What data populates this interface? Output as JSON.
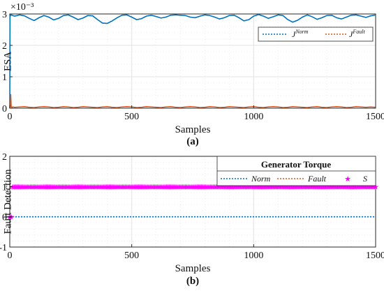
{
  "chart_data": [
    {
      "panel": "a",
      "type": "line",
      "caption": "(a)",
      "xlabel": "Samples",
      "ylabel": "ESA",
      "y_exponent_label": "×10⁻³",
      "xlim": [
        0,
        1500
      ],
      "ylim": [
        0,
        3
      ],
      "xticks": [
        "0",
        "500",
        "1000",
        "1500"
      ],
      "yticks": [
        "0",
        "1",
        "2",
        "3"
      ],
      "grid": true,
      "legend_position": "upper-right",
      "series": [
        {
          "name": "J",
          "superscript": "Norm",
          "color": "#0072BD",
          "style": "dotted",
          "x": [
            0,
            1,
            2,
            3,
            5,
            8,
            12,
            20,
            40,
            60,
            80,
            100,
            120,
            140,
            160,
            180,
            200,
            220,
            240,
            260,
            280,
            300,
            320,
            340,
            360,
            380,
            400,
            420,
            440,
            460,
            480,
            500,
            520,
            540,
            560,
            580,
            600,
            620,
            640,
            660,
            680,
            700,
            720,
            740,
            760,
            780,
            800,
            820,
            840,
            860,
            880,
            900,
            920,
            940,
            960,
            980,
            1000,
            1020,
            1040,
            1060,
            1080,
            1100,
            1120,
            1140,
            1160,
            1180,
            1200,
            1220,
            1240,
            1260,
            1280,
            1300,
            1320,
            1340,
            1360,
            1380,
            1400,
            1420,
            1440,
            1460,
            1480,
            1500
          ],
          "y": [
            0,
            2.9,
            2.95,
            2.97,
            2.96,
            2.97,
            2.95,
            2.93,
            2.97,
            2.94,
            2.86,
            2.79,
            2.88,
            2.95,
            2.9,
            2.81,
            2.86,
            2.95,
            2.97,
            2.9,
            2.82,
            2.87,
            2.95,
            2.94,
            2.82,
            2.71,
            2.7,
            2.78,
            2.88,
            2.96,
            2.97,
            2.9,
            2.82,
            2.85,
            2.93,
            2.96,
            2.92,
            2.87,
            2.9,
            2.96,
            2.97,
            2.96,
            2.95,
            2.9,
            2.88,
            2.93,
            2.97,
            2.95,
            2.9,
            2.84,
            2.88,
            2.95,
            2.96,
            2.88,
            2.78,
            2.82,
            2.93,
            2.98,
            2.93,
            2.86,
            2.91,
            2.97,
            2.95,
            2.82,
            2.74,
            2.8,
            2.9,
            2.97,
            2.91,
            2.83,
            2.88,
            2.95,
            2.96,
            2.88,
            2.84,
            2.9,
            2.96,
            2.97,
            2.93,
            2.89,
            2.94,
            2.97
          ]
        },
        {
          "name": "J",
          "superscript": "Fault",
          "color": "#D95319",
          "style": "dotted",
          "x": [
            0,
            2,
            4,
            6,
            8,
            10,
            12,
            20,
            40,
            60,
            80,
            100,
            120,
            140,
            160,
            180,
            200,
            220,
            240,
            260,
            280,
            300,
            320,
            340,
            360,
            380,
            400,
            420,
            440,
            460,
            480,
            500,
            520,
            540,
            560,
            580,
            600,
            620,
            640,
            660,
            680,
            700,
            720,
            740,
            760,
            780,
            800,
            820,
            840,
            860,
            880,
            900,
            920,
            940,
            960,
            980,
            1000,
            1020,
            1040,
            1060,
            1080,
            1100,
            1120,
            1140,
            1160,
            1180,
            1200,
            1220,
            1240,
            1260,
            1280,
            1300,
            1320,
            1340,
            1360,
            1380,
            1400,
            1420,
            1440,
            1460,
            1480,
            1500
          ],
          "y": [
            0,
            0.02,
            0.45,
            0.06,
            0.02,
            0.03,
            0.04,
            0.03,
            0.04,
            0.05,
            0.03,
            0.02,
            0.04,
            0.05,
            0.04,
            0.02,
            0.03,
            0.05,
            0.04,
            0.02,
            0.03,
            0.05,
            0.04,
            0.03,
            0.02,
            0.04,
            0.05,
            0.03,
            0.02,
            0.04,
            0.05,
            0.04,
            0.02,
            0.03,
            0.05,
            0.04,
            0.03,
            0.02,
            0.04,
            0.05,
            0.03,
            0.02,
            0.04,
            0.05,
            0.04,
            0.02,
            0.03,
            0.05,
            0.04,
            0.02,
            0.03,
            0.05,
            0.04,
            0.03,
            0.02,
            0.04,
            0.05,
            0.03,
            0.02,
            0.04,
            0.05,
            0.04,
            0.02,
            0.03,
            0.05,
            0.04,
            0.03,
            0.02,
            0.04,
            0.05,
            0.03,
            0.02,
            0.04,
            0.05,
            0.04,
            0.02,
            0.03,
            0.05,
            0.04,
            0.03,
            0.04,
            0.03
          ]
        }
      ]
    },
    {
      "panel": "b",
      "type": "line",
      "caption": "(b)",
      "xlabel": "Samples",
      "ylabel": "Fault Detection",
      "xlim": [
        0,
        1500
      ],
      "ylim": [
        -1,
        2
      ],
      "xticks": [
        "0",
        "500",
        "1000",
        "1500"
      ],
      "yticks": [
        "-1",
        "0",
        "1",
        "2"
      ],
      "grid": true,
      "legend_title": "Generator Torque",
      "legend_position": "top-right",
      "series": [
        {
          "name": "Norm",
          "color": "#0072BD",
          "style": "dotted",
          "x": [
            0,
            1500
          ],
          "y": [
            0,
            0
          ]
        },
        {
          "name": "Fault",
          "color": "#D95319",
          "style": "dotted",
          "x": [
            0,
            1500
          ],
          "y": [
            1,
            1
          ]
        },
        {
          "name": "S",
          "color": "#FF00FF",
          "style": "star-markers",
          "x_start": 0,
          "x_end": 1500,
          "step": 6,
          "value_before": 0,
          "value_after": 1,
          "switch_at": 12
        }
      ]
    }
  ]
}
